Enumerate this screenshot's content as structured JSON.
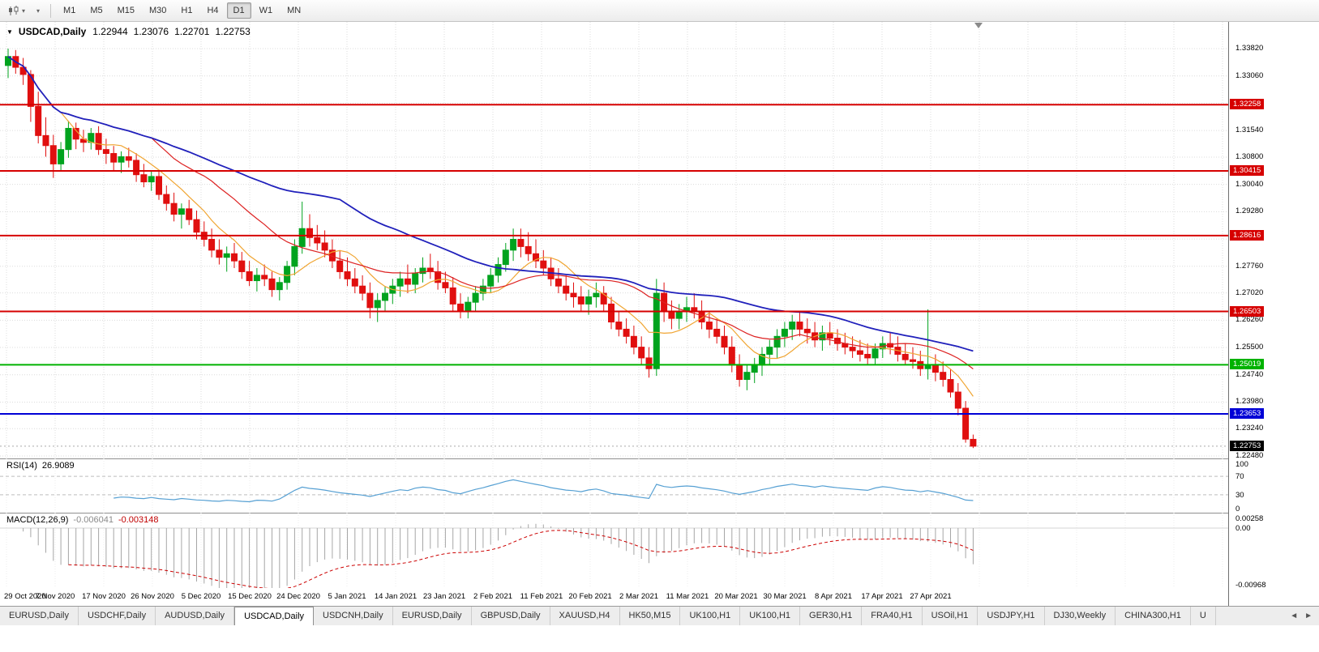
{
  "ui": {
    "toolbar": {
      "timeframes": [
        "M1",
        "M5",
        "M15",
        "M30",
        "H1",
        "H4",
        "D1",
        "W1",
        "MN"
      ],
      "active_timeframe": "D1"
    },
    "title": {
      "symbol": "USDCAD,Daily",
      "open": "1.22944",
      "high": "1.23076",
      "low": "1.22701",
      "close": "1.22753"
    },
    "icons": {
      "window_menu": "▼",
      "dropdown_caret": "▾",
      "tab_scroll_left": "◄",
      "tab_scroll_right": "►"
    },
    "tabs": {
      "active_index": 3,
      "items": [
        "EURUSD,Daily",
        "USDCHF,Daily",
        "AUDUSD,Daily",
        "USDCAD,Daily",
        "USDCNH,Daily",
        "EURUSD,Daily",
        "GBPUSD,Daily",
        "XAUUSD,H4",
        "HK50,M15",
        "UK100,H1",
        "UK100,H1",
        "GER30,H1",
        "FRA40,H1",
        "USOil,H1",
        "USDJPY,H1",
        "DJ30,Weekly",
        "CHINA300,H1",
        "U"
      ]
    }
  },
  "chart_data": {
    "type": "candlestick",
    "symbol": "USDCAD",
    "period": "Daily",
    "y_axis_labels": [
      "1.33820",
      "1.33060",
      "1.32300",
      "1.31540",
      "1.30800",
      "1.30040",
      "1.29280",
      "1.28520",
      "1.27760",
      "1.27020",
      "1.26260",
      "1.25500",
      "1.24740",
      "1.23980",
      "1.23240",
      "1.22480"
    ],
    "x_axis_labels": [
      "29 Oct 2020",
      "7 Nov 2020",
      "17 Nov 2020",
      "26 Nov 2020",
      "5 Dec 2020",
      "15 Dec 2020",
      "24 Dec 2020",
      "5 Jan 2021",
      "14 Jan 2021",
      "23 Jan 2021",
      "2 Feb 2021",
      "11 Feb 2021",
      "20 Feb 2021",
      "2 Mar 2021",
      "11 Mar 2021",
      "20 Mar 2021",
      "30 Mar 2021",
      "8 Apr 2021",
      "17 Apr 2021",
      "27 Apr 2021"
    ],
    "hlines": [
      {
        "price": 1.32258,
        "label": "1.32258",
        "color": "#d60000"
      },
      {
        "price": 1.30415,
        "label": "1.30415",
        "color": "#d60000"
      },
      {
        "price": 1.28616,
        "label": "1.28616",
        "color": "#d60000"
      },
      {
        "price": 1.26503,
        "label": "1.26503",
        "color": "#d60000"
      },
      {
        "price": 1.25019,
        "label": "1.25019",
        "color": "#00b200"
      },
      {
        "price": 1.23653,
        "label": "1.23653",
        "color": "#0000d6"
      }
    ],
    "current_price": {
      "price": 1.22753,
      "label": "1.22753",
      "color": "#000000"
    },
    "colors": {
      "up": "#00a31e",
      "down": "#e00f0f",
      "ma_fast": "#f0a532",
      "ma_mid": "#dd2222",
      "ma_slow": "#2020bb",
      "rsi_line": "#56a0d3",
      "macd_hist": "#a6a6a6",
      "macd_signal": "#cc0000",
      "grid": "#dcdcdc",
      "level_dash": "#bdbdbd"
    },
    "moving_averages": [
      {
        "period": 8,
        "color_key": "ma_fast"
      },
      {
        "period": 20,
        "color_key": "ma_mid"
      },
      {
        "period": 45,
        "color_key": "ma_slow"
      }
    ],
    "indicators": {
      "rsi": {
        "name": "RSI(14)",
        "value": "26.9089",
        "period": 14,
        "levels": [
          70,
          30
        ],
        "axis_labels": [
          "100",
          "70",
          "30",
          "0"
        ]
      },
      "macd": {
        "name": "MACD(12,26,9)",
        "fast": 12,
        "slow": 26,
        "signal": 9,
        "value_main": "-0.006041",
        "value_signal": "-0.003148",
        "axis_labels": [
          "0.00258",
          "0.00",
          "-0.00968"
        ]
      }
    },
    "ohlc": [
      [
        1.3335,
        1.3382,
        1.33,
        1.336
      ],
      [
        1.336,
        1.3378,
        1.3312,
        1.333
      ],
      [
        1.333,
        1.3356,
        1.3281,
        1.331
      ],
      [
        1.331,
        1.3322,
        1.3178,
        1.3221
      ],
      [
        1.3221,
        1.3262,
        1.3118,
        1.314
      ],
      [
        1.314,
        1.3191,
        1.3081,
        1.3112
      ],
      [
        1.3112,
        1.3142,
        1.3022,
        1.3061
      ],
      [
        1.3061,
        1.3122,
        1.304,
        1.3101
      ],
      [
        1.3101,
        1.3181,
        1.3078,
        1.316
      ],
      [
        1.316,
        1.3176,
        1.3102,
        1.313
      ],
      [
        1.313,
        1.3156,
        1.3094,
        1.3121
      ],
      [
        1.3121,
        1.3161,
        1.3101,
        1.3146
      ],
      [
        1.3146,
        1.3166,
        1.3086,
        1.3101
      ],
      [
        1.3101,
        1.3131,
        1.3061,
        1.309
      ],
      [
        1.309,
        1.3111,
        1.3041,
        1.3066
      ],
      [
        1.3066,
        1.3096,
        1.3036,
        1.3081
      ],
      [
        1.3081,
        1.3106,
        1.3051,
        1.3071
      ],
      [
        1.3071,
        1.3091,
        1.3011,
        1.3031
      ],
      [
        1.3031,
        1.3061,
        1.2996,
        1.3011
      ],
      [
        1.3011,
        1.3041,
        1.2986,
        1.3026
      ],
      [
        1.3026,
        1.3041,
        1.2961,
        1.2976
      ],
      [
        1.2976,
        1.3001,
        1.2931,
        1.2951
      ],
      [
        1.2951,
        1.2981,
        1.2901,
        1.2921
      ],
      [
        1.2921,
        1.2951,
        1.2881,
        1.2936
      ],
      [
        1.2936,
        1.2961,
        1.2891,
        1.2906
      ],
      [
        1.2906,
        1.2931,
        1.2851,
        1.2871
      ],
      [
        1.2871,
        1.2901,
        1.2831,
        1.2851
      ],
      [
        1.2851,
        1.2881,
        1.2801,
        1.2821
      ],
      [
        1.2821,
        1.2851,
        1.2781,
        1.2801
      ],
      [
        1.2801,
        1.2831,
        1.2761,
        1.2811
      ],
      [
        1.2811,
        1.2841,
        1.2771,
        1.2791
      ],
      [
        1.2791,
        1.2816,
        1.2741,
        1.2761
      ],
      [
        1.2761,
        1.2791,
        1.2721,
        1.2736
      ],
      [
        1.2736,
        1.2771,
        1.2706,
        1.2751
      ],
      [
        1.2751,
        1.2781,
        1.2721,
        1.2741
      ],
      [
        1.2741,
        1.2761,
        1.2691,
        1.2711
      ],
      [
        1.2711,
        1.2746,
        1.2681,
        1.2731
      ],
      [
        1.2731,
        1.2791,
        1.2711,
        1.2776
      ],
      [
        1.2776,
        1.2851,
        1.2751,
        1.2831
      ],
      [
        1.2831,
        1.2956,
        1.2811,
        1.2881
      ],
      [
        1.2881,
        1.2921,
        1.2831,
        1.2856
      ],
      [
        1.2856,
        1.2891,
        1.2821,
        1.2841
      ],
      [
        1.2841,
        1.2876,
        1.2801,
        1.2821
      ],
      [
        1.2821,
        1.2851,
        1.2771,
        1.2791
      ],
      [
        1.2791,
        1.2821,
        1.2741,
        1.2761
      ],
      [
        1.2761,
        1.2801,
        1.2721,
        1.2741
      ],
      [
        1.2741,
        1.2771,
        1.2701,
        1.2721
      ],
      [
        1.2721,
        1.2751,
        1.2681,
        1.2701
      ],
      [
        1.2701,
        1.2731,
        1.2631,
        1.2661
      ],
      [
        1.2661,
        1.2701,
        1.2621,
        1.2681
      ],
      [
        1.2681,
        1.2721,
        1.2651,
        1.2701
      ],
      [
        1.2701,
        1.2741,
        1.2671,
        1.2721
      ],
      [
        1.2721,
        1.2761,
        1.2691,
        1.2741
      ],
      [
        1.2741,
        1.2781,
        1.2701,
        1.2726
      ],
      [
        1.2726,
        1.2771,
        1.2701,
        1.2756
      ],
      [
        1.2756,
        1.2801,
        1.2731,
        1.2771
      ],
      [
        1.2771,
        1.2811,
        1.2741,
        1.2761
      ],
      [
        1.2761,
        1.2791,
        1.2711,
        1.2731
      ],
      [
        1.2731,
        1.2761,
        1.2701,
        1.2716
      ],
      [
        1.2716,
        1.2746,
        1.2651,
        1.2671
      ],
      [
        1.2671,
        1.2701,
        1.2631,
        1.2651
      ],
      [
        1.2651,
        1.2691,
        1.2631,
        1.2676
      ],
      [
        1.2676,
        1.2721,
        1.2651,
        1.2701
      ],
      [
        1.2701,
        1.2741,
        1.2681,
        1.2721
      ],
      [
        1.2721,
        1.2771,
        1.2701,
        1.2751
      ],
      [
        1.2751,
        1.2801,
        1.2731,
        1.2781
      ],
      [
        1.2781,
        1.2841,
        1.2761,
        1.2821
      ],
      [
        1.2821,
        1.2881,
        1.2791,
        1.2851
      ],
      [
        1.2851,
        1.2881,
        1.2801,
        1.2831
      ],
      [
        1.2831,
        1.2871,
        1.2791,
        1.2811
      ],
      [
        1.2811,
        1.2851,
        1.2771,
        1.2791
      ],
      [
        1.2791,
        1.2821,
        1.2751,
        1.2771
      ],
      [
        1.2771,
        1.2801,
        1.2721,
        1.2741
      ],
      [
        1.2741,
        1.2771,
        1.2701,
        1.2721
      ],
      [
        1.2721,
        1.2751,
        1.2681,
        1.2701
      ],
      [
        1.2701,
        1.2731,
        1.2661,
        1.2691
      ],
      [
        1.2691,
        1.2721,
        1.2651,
        1.2671
      ],
      [
        1.2671,
        1.2711,
        1.2641,
        1.2691
      ],
      [
        1.2691,
        1.2731,
        1.2661,
        1.2701
      ],
      [
        1.2701,
        1.2721,
        1.2651,
        1.2671
      ],
      [
        1.2671,
        1.2691,
        1.2601,
        1.2621
      ],
      [
        1.2621,
        1.2651,
        1.2581,
        1.2601
      ],
      [
        1.2601,
        1.2631,
        1.2561,
        1.2581
      ],
      [
        1.2581,
        1.2611,
        1.2531,
        1.2551
      ],
      [
        1.2551,
        1.2581,
        1.2501,
        1.2521
      ],
      [
        1.2521,
        1.2551,
        1.2466,
        1.2491
      ],
      [
        1.2491,
        1.2741,
        1.2471,
        1.2701
      ],
      [
        1.2701,
        1.2731,
        1.2621,
        1.2651
      ],
      [
        1.2651,
        1.2681,
        1.2601,
        1.2631
      ],
      [
        1.2631,
        1.2671,
        1.2601,
        1.2651
      ],
      [
        1.2651,
        1.2691,
        1.2621,
        1.2661
      ],
      [
        1.2661,
        1.2701,
        1.2631,
        1.2651
      ],
      [
        1.2651,
        1.2681,
        1.2601,
        1.2621
      ],
      [
        1.2621,
        1.2651,
        1.2576,
        1.2601
      ],
      [
        1.2601,
        1.2631,
        1.2561,
        1.2581
      ],
      [
        1.2581,
        1.2611,
        1.2531,
        1.2551
      ],
      [
        1.2551,
        1.2581,
        1.2481,
        1.2501
      ],
      [
        1.2501,
        1.2531,
        1.2441,
        1.2461
      ],
      [
        1.2461,
        1.2501,
        1.2431,
        1.2481
      ],
      [
        1.2481,
        1.2521,
        1.2451,
        1.2501
      ],
      [
        1.2501,
        1.2551,
        1.2471,
        1.2531
      ],
      [
        1.2531,
        1.2571,
        1.2501,
        1.2551
      ],
      [
        1.2551,
        1.2601,
        1.2521,
        1.2581
      ],
      [
        1.2581,
        1.2621,
        1.2551,
        1.2601
      ],
      [
        1.2601,
        1.2641,
        1.2571,
        1.2621
      ],
      [
        1.2621,
        1.2651,
        1.2581,
        1.2601
      ],
      [
        1.2601,
        1.2631,
        1.2561,
        1.2591
      ],
      [
        1.2591,
        1.2621,
        1.2551,
        1.2571
      ],
      [
        1.2571,
        1.2611,
        1.2541,
        1.2591
      ],
      [
        1.2591,
        1.2621,
        1.2556,
        1.2576
      ],
      [
        1.2576,
        1.2601,
        1.2541,
        1.2561
      ],
      [
        1.2561,
        1.2591,
        1.2531,
        1.2551
      ],
      [
        1.2551,
        1.2581,
        1.2521,
        1.2541
      ],
      [
        1.2541,
        1.2571,
        1.2511,
        1.2531
      ],
      [
        1.2531,
        1.2561,
        1.2501,
        1.2521
      ],
      [
        1.2521,
        1.2561,
        1.2501,
        1.2546
      ],
      [
        1.2546,
        1.2581,
        1.2521,
        1.2561
      ],
      [
        1.2561,
        1.2591,
        1.2531,
        1.2551
      ],
      [
        1.2551,
        1.2581,
        1.2511,
        1.2531
      ],
      [
        1.2531,
        1.2561,
        1.2501,
        1.2516
      ],
      [
        1.2516,
        1.2551,
        1.2491,
        1.2511
      ],
      [
        1.2511,
        1.2541,
        1.2471,
        1.2491
      ],
      [
        1.2491,
        1.2656,
        1.2461,
        1.2501
      ],
      [
        1.2501,
        1.2531,
        1.2456,
        1.2481
      ],
      [
        1.2481,
        1.2511,
        1.2441,
        1.2461
      ],
      [
        1.2461,
        1.2491,
        1.2411,
        1.2426
      ],
      [
        1.2426,
        1.2451,
        1.2361,
        1.2381
      ],
      [
        1.2381,
        1.2401,
        1.2285,
        1.2295
      ],
      [
        1.22944,
        1.23076,
        1.22701,
        1.22753
      ]
    ]
  }
}
